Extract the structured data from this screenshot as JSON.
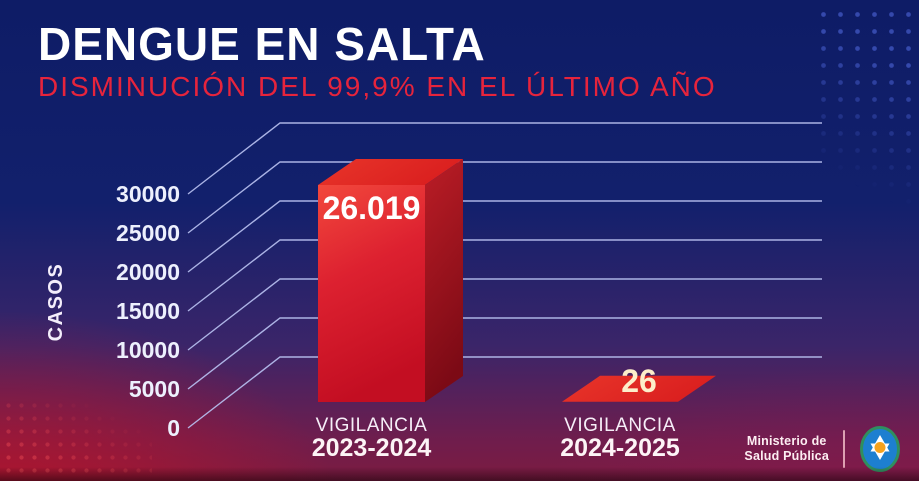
{
  "header": {
    "title": "DENGUE EN SALTA",
    "subtitle": "DISMINUCIÓN DEL 99,9% EN EL ÚLTIMO AÑO"
  },
  "chart_data": {
    "type": "bar",
    "style": "pseudo-3d",
    "title": "DENGUE EN SALTA",
    "subtitle": "DISMINUCIÓN DEL 99,9% EN EL ÚLTIMO AÑO",
    "ylabel": "CASOS",
    "xlabel": "",
    "categories": [
      [
        "VIGILANCIA",
        "2023-2024"
      ],
      [
        "VIGILANCIA",
        "2024-2025"
      ]
    ],
    "values": [
      26019,
      26
    ],
    "value_labels": [
      "26.019",
      "26"
    ],
    "yticks": [
      0,
      5000,
      10000,
      15000,
      20000,
      25000,
      30000
    ],
    "ylim": [
      0,
      30000
    ],
    "grid": true,
    "legend": false,
    "bar_color": "#d81b2a"
  },
  "footer": {
    "org_line1": "Ministerio de",
    "org_line2": "Salud Pública",
    "logo": "salta-star-emblem"
  },
  "colors": {
    "background_top": "#0e1c66",
    "background_bottom_left": "#b0142a",
    "background_bottom_right": "#6e1d50",
    "accent_red": "#e6243c",
    "grid_line": "#b7c0f0",
    "text_light": "#f2eefc",
    "bar_value_label_1": "#ffffff",
    "bar_value_label_2": "#fdeeca"
  }
}
